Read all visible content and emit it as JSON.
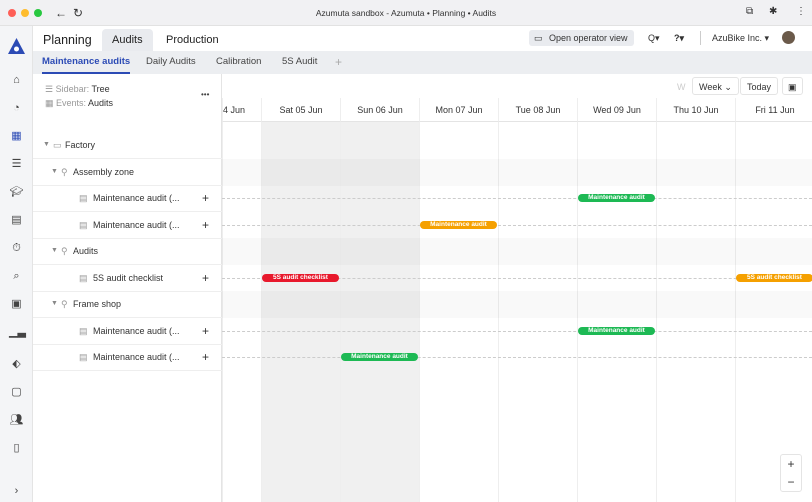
{
  "window": {
    "title": "Azumuta sandbox - Azumuta • Planning • Audits"
  },
  "colors": {
    "accent": "#2c4bb5",
    "green": "#1db954",
    "orange": "#f5a000",
    "red": "#e8192c"
  },
  "header": {
    "app": "Planning",
    "tabs": [
      {
        "label": "Audits",
        "active": true
      },
      {
        "label": "Production",
        "active": false
      }
    ],
    "operator_view": "Open operator view",
    "company": "AzuBike Inc. ▾",
    "search_caret": "Q▾",
    "help": "?▾"
  },
  "subtabs": [
    {
      "label": "Maintenance audits",
      "active": true
    },
    {
      "label": "Daily Audits"
    },
    {
      "label": "Calibration"
    },
    {
      "label": "5S Audit"
    },
    {
      "label": "+"
    }
  ],
  "sidebar": {
    "sidebar_label": "Sidebar:",
    "sidebar_value": "Tree",
    "events_label": "Events:",
    "events_value": "Audits",
    "more": "•••",
    "tree": [
      {
        "label": "Factory",
        "level": 0,
        "type": "folder"
      },
      {
        "label": "Assembly zone",
        "level": 1,
        "type": "location"
      },
      {
        "label": "Maintenance audit (...",
        "level": 2,
        "type": "audit"
      },
      {
        "label": "Maintenance audit (...",
        "level": 2,
        "type": "audit"
      },
      {
        "label": "Audits",
        "level": 1,
        "type": "location"
      },
      {
        "label": "5S audit checklist",
        "level": 2,
        "type": "audit"
      },
      {
        "label": "Frame shop",
        "level": 1,
        "type": "location"
      },
      {
        "label": "Maintenance audit (...",
        "level": 2,
        "type": "audit"
      },
      {
        "label": "Maintenance audit (...",
        "level": 2,
        "type": "audit"
      }
    ]
  },
  "calendar": {
    "view": "Week",
    "view_hint": "W",
    "today": "Today",
    "days": [
      "4 Jun",
      "Sat 05 Jun",
      "Sun 06 Jun",
      "Mon 07 Jun",
      "Tue 08 Jun",
      "Wed 09 Jun",
      "Thu 10 Jun",
      "Fri 11 Jun"
    ],
    "events": [
      {
        "label": "Maintenance audit",
        "row": 2,
        "day": 5,
        "color": "green"
      },
      {
        "label": "Maintenance audit",
        "row": 3,
        "day": 3,
        "color": "orange"
      },
      {
        "label": "5S audit checklist",
        "row": 5,
        "day": 1,
        "color": "red"
      },
      {
        "label": "5S audit checklist",
        "row": 5,
        "day": 7,
        "color": "orange"
      },
      {
        "label": "Maintenance audit",
        "row": 7,
        "day": 5,
        "color": "green"
      },
      {
        "label": "Maintenance audit",
        "row": 8,
        "day": 2,
        "color": "green"
      }
    ]
  },
  "zoom": {
    "in": "+",
    "out": "−"
  },
  "nav_expand": "›"
}
